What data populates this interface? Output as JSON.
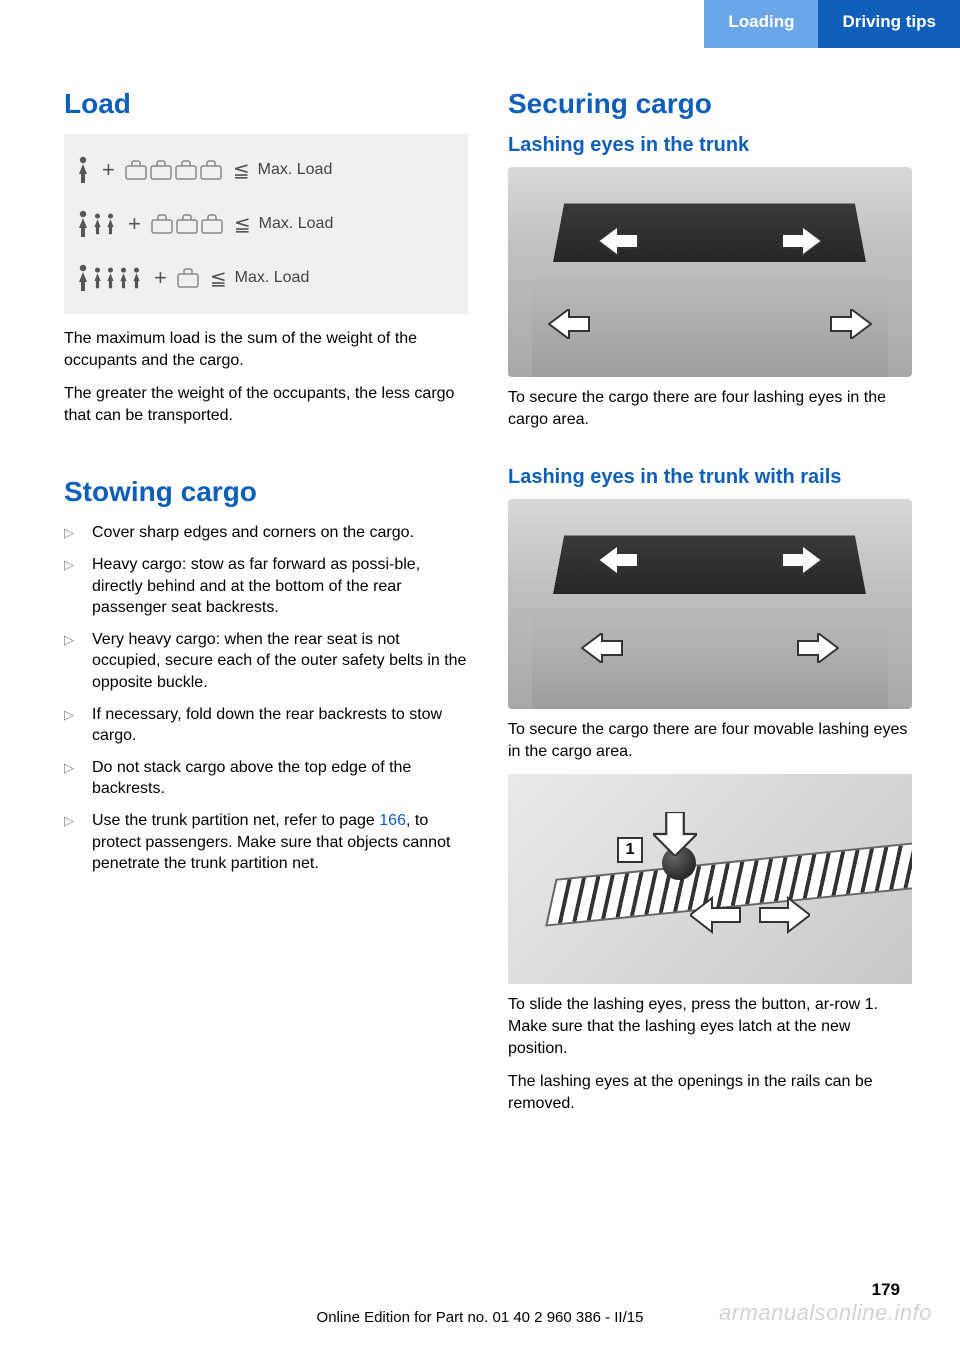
{
  "header": {
    "tab_left": "Loading",
    "tab_right": "Driving tips"
  },
  "left_col": {
    "title_load": "Load",
    "load_diagram": {
      "rows": [
        {
          "persons_large": 1,
          "persons_small": 0,
          "cases": 4,
          "label": "Max. Load"
        },
        {
          "persons_large": 1,
          "persons_small": 2,
          "cases": 3,
          "label": "Max. Load"
        },
        {
          "persons_large": 1,
          "persons_small": 4,
          "cases": 1,
          "label": "Max. Load"
        }
      ],
      "bg": "#f0f0f0"
    },
    "para1": "The maximum load is the sum of the weight of the occupants and the cargo.",
    "para2": "The greater the weight of the occupants, the less cargo that can be transported.",
    "title_stowing": "Stowing cargo",
    "bullets": [
      "Cover sharp edges and corners on the cargo.",
      "Heavy cargo: stow as far forward as possi‐ble, directly behind and at the bottom of the rear passenger seat backrests.",
      "Very heavy cargo: when the rear seat is not occupied, secure each of the outer safety belts in the opposite buckle.",
      "If necessary, fold down the rear backrests to stow cargo.",
      "Do not stack cargo above the top edge of the backrests."
    ],
    "bullet_xref_pre": "Use the trunk partition net, refer to page ",
    "bullet_xref_link": "166",
    "bullet_xref_post": ", to protect passengers. Make sure that objects cannot penetrate the trunk partition net."
  },
  "right_col": {
    "title_securing": "Securing cargo",
    "sub_lashing1": "Lashing eyes in the trunk",
    "para_lash1": "To secure the cargo there are four lashing eyes in the cargo area.",
    "sub_lashing2": "Lashing eyes in the trunk with rails",
    "para_lash2": "To secure the cargo there are four movable lashing eyes in the cargo area.",
    "rail_label": "1",
    "para_rail1": "To slide the lashing eyes, press the button, ar‐row 1. Make sure that the lashing eyes latch at the new position.",
    "para_rail2": "The lashing eyes at the openings in the rails can be removed."
  },
  "footer": {
    "page_number": "179",
    "edition_line": "Online Edition for Part no. 01 40 2 960 386 - II/15",
    "watermark": "armanualsonline.info"
  },
  "colors": {
    "primary_blue": "#0d5fba",
    "light_blue": "#6aa6e8"
  }
}
